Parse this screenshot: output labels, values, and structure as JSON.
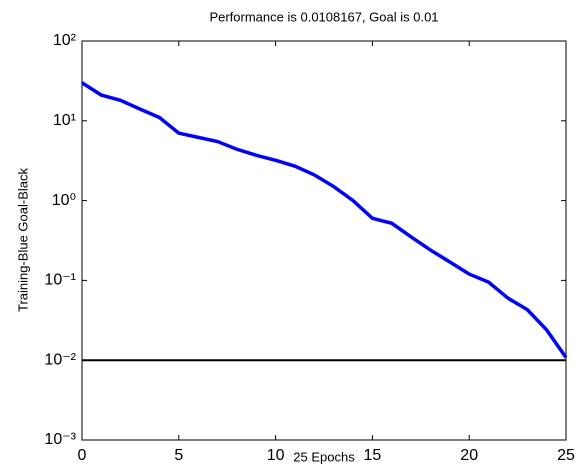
{
  "chart_data": {
    "type": "line",
    "title": "Performance is 0.0108167, Goal is 0.01",
    "x_label": "25 Epochs",
    "y_label": "Training-Blue  Goal-Black",
    "x": [
      0,
      1,
      2,
      3,
      4,
      5,
      6,
      7,
      8,
      9,
      10,
      11,
      12,
      13,
      14,
      15,
      16,
      17,
      18,
      19,
      20,
      21,
      22,
      23,
      24,
      25
    ],
    "values": [
      30,
      21,
      18,
      14,
      11,
      7,
      6.2,
      5.5,
      4.4,
      3.7,
      3.2,
      2.7,
      2.1,
      1.5,
      1.0,
      0.6,
      0.52,
      0.35,
      0.24,
      0.17,
      0.12,
      0.095,
      0.06,
      0.043,
      0.024,
      0.0108167
    ],
    "color": "#0000ff",
    "goal": 0.01,
    "goal_color": "#000000",
    "xlim": [
      0,
      25
    ],
    "xticks": [
      0,
      5,
      10,
      15,
      20,
      25
    ],
    "ylim": [
      0.001,
      100
    ],
    "log_y": true,
    "yticks": [
      {
        "value": 0.001,
        "label": "10⁻³"
      },
      {
        "value": 0.01,
        "label": "10⁻²"
      },
      {
        "value": 0.1,
        "label": "10⁻¹"
      },
      {
        "value": 1,
        "label": "10⁰"
      },
      {
        "value": 10,
        "label": "10¹"
      },
      {
        "value": 100,
        "label": "10²"
      }
    ],
    "grid": false
  }
}
